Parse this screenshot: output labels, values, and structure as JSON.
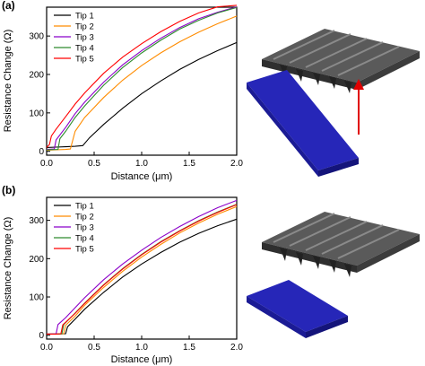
{
  "panel_labels": [
    "(a)",
    "(b)"
  ],
  "chart_data": [
    {
      "type": "line",
      "panel": "(a)",
      "xlabel": "Distance (μm)",
      "ylabel": "Resistance Change (Ω)",
      "xlim": [
        0,
        2.0
      ],
      "ylim": [
        -10,
        375
      ],
      "xticks": [
        "0.0",
        "0.5",
        "1.0",
        "1.5",
        "2.0"
      ],
      "yticks": [
        "0",
        "100",
        "200",
        "300"
      ],
      "legend_position": "top-left",
      "grid": false,
      "series": [
        {
          "name": "Tip 1",
          "color": "#000000",
          "x": [
            0.0,
            0.1,
            0.2,
            0.3,
            0.38,
            0.45,
            0.6,
            0.8,
            1.0,
            1.2,
            1.4,
            1.6,
            1.8,
            2.0
          ],
          "y": [
            10,
            11,
            12,
            13,
            15,
            35,
            70,
            112,
            150,
            183,
            213,
            239,
            262,
            283
          ]
        },
        {
          "name": "Tip 2",
          "color": "#ff8c00",
          "x": [
            0.0,
            0.1,
            0.2,
            0.25,
            0.3,
            0.4,
            0.6,
            0.8,
            1.0,
            1.2,
            1.4,
            1.6,
            1.8,
            2.0
          ],
          "y": [
            3,
            4,
            5,
            6,
            52,
            88,
            140,
            185,
            223,
            256,
            285,
            310,
            332,
            352
          ]
        },
        {
          "name": "Tip 3",
          "color": "#8b00c9",
          "x": [
            0.0,
            0.08,
            0.1,
            0.2,
            0.3,
            0.4,
            0.6,
            0.8,
            1.0,
            1.2,
            1.4,
            1.6,
            1.8,
            2.0
          ],
          "y": [
            5,
            6,
            30,
            62,
            98,
            128,
            180,
            225,
            262,
            294,
            322,
            345,
            362,
            376
          ]
        },
        {
          "name": "Tip 4",
          "color": "#2e8b2e",
          "x": [
            0.0,
            0.12,
            0.14,
            0.2,
            0.3,
            0.4,
            0.6,
            0.8,
            1.0,
            1.2,
            1.4,
            1.6,
            1.8,
            2.0
          ],
          "y": [
            4,
            5,
            33,
            52,
            88,
            118,
            172,
            218,
            256,
            289,
            318,
            341,
            360,
            374
          ]
        },
        {
          "name": "Tip 5",
          "color": "#ff0000",
          "x": [
            0.0,
            0.03,
            0.05,
            0.1,
            0.2,
            0.3,
            0.4,
            0.6,
            0.8,
            1.0,
            1.2,
            1.4,
            1.6,
            1.8,
            2.0
          ],
          "y": [
            10,
            18,
            40,
            58,
            90,
            123,
            152,
            203,
            245,
            280,
            311,
            338,
            360,
            376,
            380
          ]
        }
      ]
    },
    {
      "type": "line",
      "panel": "(b)",
      "xlabel": "Distance (μm)",
      "ylabel": "Resistance Change (Ω)",
      "xlim": [
        0,
        2.0
      ],
      "ylim": [
        -10,
        360
      ],
      "xticks": [
        "0.0",
        "0.5",
        "1.0",
        "1.5",
        "2.0"
      ],
      "yticks": [
        "0",
        "100",
        "200",
        "300"
      ],
      "legend_position": "top-left",
      "grid": false,
      "series": [
        {
          "name": "Tip 1",
          "color": "#000000",
          "x": [
            0.0,
            0.1,
            0.2,
            0.22,
            0.3,
            0.4,
            0.6,
            0.8,
            1.0,
            1.2,
            1.4,
            1.6,
            1.8,
            2.0
          ],
          "y": [
            3,
            3,
            4,
            22,
            42,
            68,
            112,
            152,
            186,
            216,
            243,
            266,
            286,
            303
          ]
        },
        {
          "name": "Tip 2",
          "color": "#ff8c00",
          "x": [
            0.0,
            0.1,
            0.18,
            0.2,
            0.3,
            0.4,
            0.6,
            0.8,
            1.0,
            1.2,
            1.4,
            1.6,
            1.8,
            2.0
          ],
          "y": [
            3,
            3,
            4,
            26,
            50,
            78,
            125,
            167,
            204,
            237,
            267,
            293,
            316,
            336
          ]
        },
        {
          "name": "Tip 3",
          "color": "#8b00c9",
          "x": [
            0.0,
            0.1,
            0.12,
            0.2,
            0.3,
            0.4,
            0.6,
            0.8,
            1.0,
            1.2,
            1.4,
            1.6,
            1.8,
            2.0
          ],
          "y": [
            3,
            4,
            28,
            46,
            72,
            98,
            145,
            186,
            222,
            255,
            284,
            310,
            333,
            352
          ]
        },
        {
          "name": "Tip 4",
          "color": "#2e8b2e",
          "x": [
            0.0,
            0.1,
            0.16,
            0.18,
            0.3,
            0.4,
            0.6,
            0.8,
            1.0,
            1.2,
            1.4,
            1.6,
            1.8,
            2.0
          ],
          "y": [
            3,
            3,
            4,
            28,
            58,
            84,
            132,
            174,
            211,
            244,
            273,
            299,
            322,
            342
          ]
        },
        {
          "name": "Tip 5",
          "color": "#ff0000",
          "x": [
            0.0,
            0.1,
            0.15,
            0.17,
            0.3,
            0.4,
            0.6,
            0.8,
            1.0,
            1.2,
            1.4,
            1.6,
            1.8,
            2.0
          ],
          "y": [
            3,
            3,
            4,
            27,
            57,
            83,
            131,
            173,
            210,
            243,
            272,
            298,
            321,
            341
          ]
        }
      ]
    }
  ],
  "illustration": {
    "cantilever_color": "#4a4a4a",
    "substrate_color": "#2424b8",
    "arrow_color": "#e00000"
  }
}
